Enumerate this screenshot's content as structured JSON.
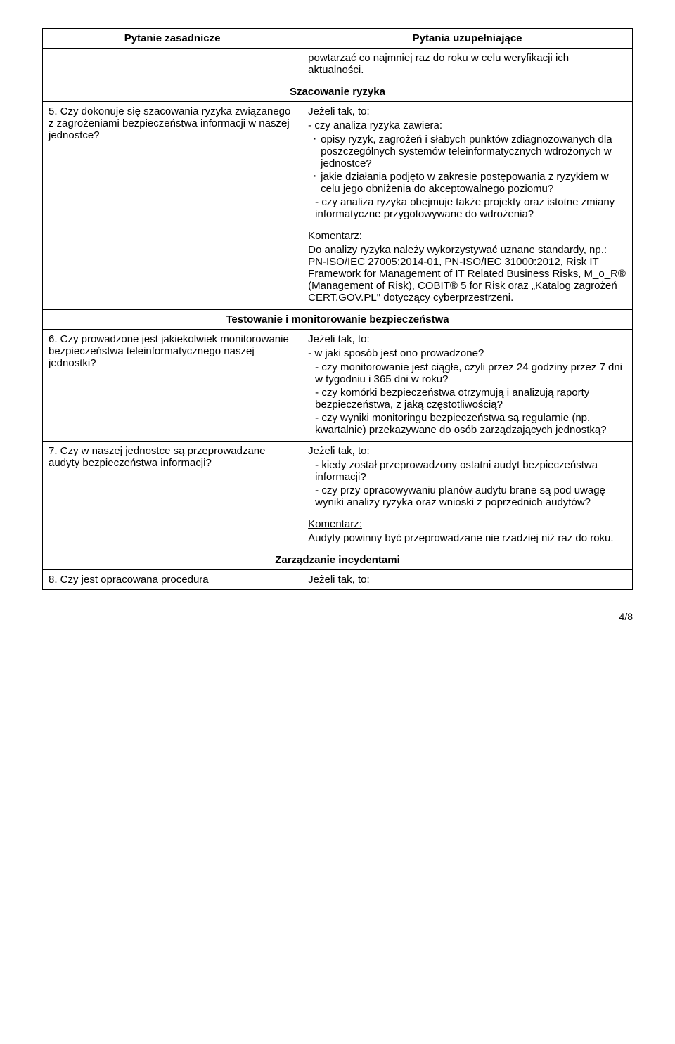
{
  "header": {
    "left": "Pytanie zasadnicze",
    "right": "Pytania uzupełniające"
  },
  "row_top": {
    "text": "powtarzać co najmniej raz do roku w celu weryfikacji ich aktualności."
  },
  "section1": {
    "title": "Szacowanie ryzyka"
  },
  "row5": {
    "left": "5. Czy dokonuje się szacowania ryzyka związanego z zagrożeniami bezpieczeństwa informacji w naszej jednostce?",
    "right": {
      "lead": "Jeżeli tak, to:",
      "dash1": "- czy analiza ryzyka zawiera:",
      "b1": "opisy ryzyk, zagrożeń i słabych punktów zdiagnozowanych dla poszczególnych systemów teleinformatycznych wdrożonych w jednostce?",
      "b2": "jakie działania podjęto w zakresie postępowania z ryzykiem w celu jego obniżenia do akceptowalnego poziomu?",
      "dash2": "- czy analiza ryzyka obejmuje także projekty oraz istotne zmiany informatyczne przygotowywane do wdrożenia?",
      "komentarz_label": "Komentarz:",
      "komentarz_body": "Do analizy ryzyka należy wykorzystywać uznane standardy, np.: PN-ISO/IEC 27005:2014-01, PN-ISO/IEC 31000:2012, Risk IT Framework for Management of IT Related Business Risks, M_o_R® (Management of Risk), COBIT® 5  for Risk oraz „Katalog zagrożeń CERT.GOV.PL\" dotyczący cyberprzestrzeni."
    }
  },
  "section2": {
    "title": "Testowanie i monitorowanie bezpieczeństwa"
  },
  "row6": {
    "left": "6. Czy prowadzone jest jakiekolwiek monitorowanie bezpieczeństwa teleinformatycznego naszej jednostki?",
    "right": {
      "lead": "Jeżeli tak, to:",
      "d1": "- w jaki sposób jest ono prowadzone?",
      "d2": "- czy monitorowanie jest ciągłe, czyli przez 24 godziny przez 7 dni w tygodniu i 365 dni w roku?",
      "d3": "- czy komórki bezpieczeństwa otrzymują i analizują raporty bezpieczeństwa, z jaką częstotliwością?",
      "d4": "- czy wyniki monitoringu bezpieczeństwa są regularnie (np. kwartalnie) przekazywane do osób zarządzających jednostką?"
    }
  },
  "row7": {
    "left": "7. Czy w naszej jednostce są przeprowadzane audyty bezpieczeństwa informacji?",
    "right": {
      "lead": "Jeżeli tak, to:",
      "d1": "- kiedy został przeprowadzony ostatni audyt bezpieczeństwa informacji?",
      "d2": "- czy przy opracowywaniu planów audytu brane są pod uwagę wyniki analizy ryzyka oraz wnioski z poprzednich audytów?",
      "komentarz_label": "Komentarz:",
      "komentarz_body": "Audyty powinny być przeprowadzane nie rzadziej niż raz do roku."
    }
  },
  "section3": {
    "title": "Zarządzanie incydentami"
  },
  "row8": {
    "left": "8. Czy jest opracowana procedura",
    "right": "Jeżeli tak, to:"
  },
  "footer": {
    "page": "4/8"
  }
}
